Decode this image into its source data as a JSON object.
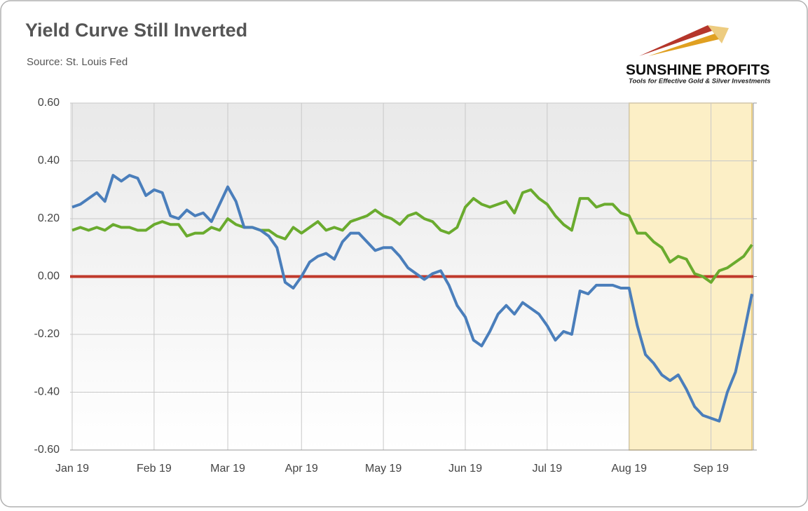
{
  "chart_data": {
    "type": "line",
    "title": "Yield Curve Still Inverted",
    "subtitle": "Source: St. Louis Fed",
    "logo": {
      "name": "SUNSHINE PROFITS",
      "tagline": "Tools for Effective Gold & Silver Investments"
    },
    "categories": [
      "Jan 19",
      null,
      null,
      null,
      null,
      null,
      null,
      null,
      null,
      null,
      "Feb 19",
      null,
      null,
      null,
      null,
      null,
      null,
      null,
      null,
      "Mar 19",
      null,
      null,
      null,
      null,
      null,
      null,
      null,
      null,
      "Apr 19",
      null,
      null,
      null,
      null,
      null,
      null,
      null,
      null,
      null,
      "May 19",
      null,
      null,
      null,
      null,
      null,
      null,
      null,
      null,
      null,
      "Jun 19",
      null,
      null,
      null,
      null,
      null,
      null,
      null,
      null,
      null,
      "Jul 19",
      null,
      null,
      null,
      null,
      null,
      null,
      null,
      null,
      null,
      "Aug 19",
      null,
      null,
      null,
      null,
      null,
      null,
      null,
      null,
      null,
      "Sep 19",
      null,
      null,
      null,
      null,
      null
    ],
    "series": [
      {
        "color": "#4a7ebb",
        "values": [
          0.24,
          0.25,
          0.27,
          0.29,
          0.26,
          0.35,
          0.33,
          0.35,
          0.34,
          0.28,
          0.3,
          0.29,
          0.21,
          0.2,
          0.23,
          0.21,
          0.22,
          0.19,
          0.25,
          0.31,
          0.26,
          0.17,
          0.17,
          0.16,
          0.14,
          0.1,
          -0.02,
          -0.04,
          0.0,
          0.05,
          0.07,
          0.08,
          0.06,
          0.12,
          0.15,
          0.15,
          0.12,
          0.09,
          0.1,
          0.1,
          0.07,
          0.03,
          0.01,
          -0.01,
          0.01,
          0.02,
          -0.03,
          -0.1,
          -0.14,
          -0.22,
          -0.24,
          -0.19,
          -0.13,
          -0.1,
          -0.13,
          -0.09,
          -0.11,
          -0.13,
          -0.17,
          -0.22,
          -0.19,
          -0.2,
          -0.05,
          -0.06,
          -0.03,
          -0.03,
          -0.03,
          -0.04,
          -0.04,
          -0.17,
          -0.27,
          -0.3,
          -0.34,
          -0.36,
          -0.34,
          -0.39,
          -0.45,
          -0.48,
          -0.49,
          -0.5,
          -0.4,
          -0.33,
          -0.2,
          -0.06
        ]
      },
      {
        "color": "#6aab2e",
        "values": [
          0.16,
          0.17,
          0.16,
          0.17,
          0.16,
          0.18,
          0.17,
          0.17,
          0.16,
          0.16,
          0.18,
          0.19,
          0.18,
          0.18,
          0.14,
          0.15,
          0.15,
          0.17,
          0.16,
          0.2,
          0.18,
          0.17,
          0.17,
          0.16,
          0.16,
          0.14,
          0.13,
          0.17,
          0.15,
          0.17,
          0.19,
          0.16,
          0.17,
          0.16,
          0.19,
          0.2,
          0.21,
          0.23,
          0.21,
          0.2,
          0.18,
          0.21,
          0.22,
          0.2,
          0.19,
          0.16,
          0.15,
          0.17,
          0.24,
          0.27,
          0.25,
          0.24,
          0.25,
          0.26,
          0.22,
          0.29,
          0.3,
          0.27,
          0.25,
          0.21,
          0.18,
          0.16,
          0.27,
          0.27,
          0.24,
          0.25,
          0.25,
          0.22,
          0.21,
          0.15,
          0.15,
          0.12,
          0.1,
          0.05,
          0.07,
          0.06,
          0.01,
          0.0,
          -0.02,
          0.02,
          0.03,
          0.05,
          0.07,
          0.11
        ]
      }
    ],
    "ylim": [
      -0.6,
      0.6
    ],
    "yticks": [
      {
        "value": -0.6,
        "label": "-0.60"
      },
      {
        "value": -0.4,
        "label": "-0.40"
      },
      {
        "value": -0.2,
        "label": "-0.20"
      },
      {
        "value": 0,
        "label": "0.00"
      },
      {
        "value": 0.2,
        "label": "0.20"
      },
      {
        "value": 0.4,
        "label": "0.40"
      },
      {
        "value": 0.6,
        "label": "0.60"
      }
    ],
    "grid": true,
    "reference_line": {
      "value": 0,
      "color": "#c0392b"
    },
    "highlight": {
      "from": "Aug 19",
      "color": "#fcefc6"
    }
  }
}
